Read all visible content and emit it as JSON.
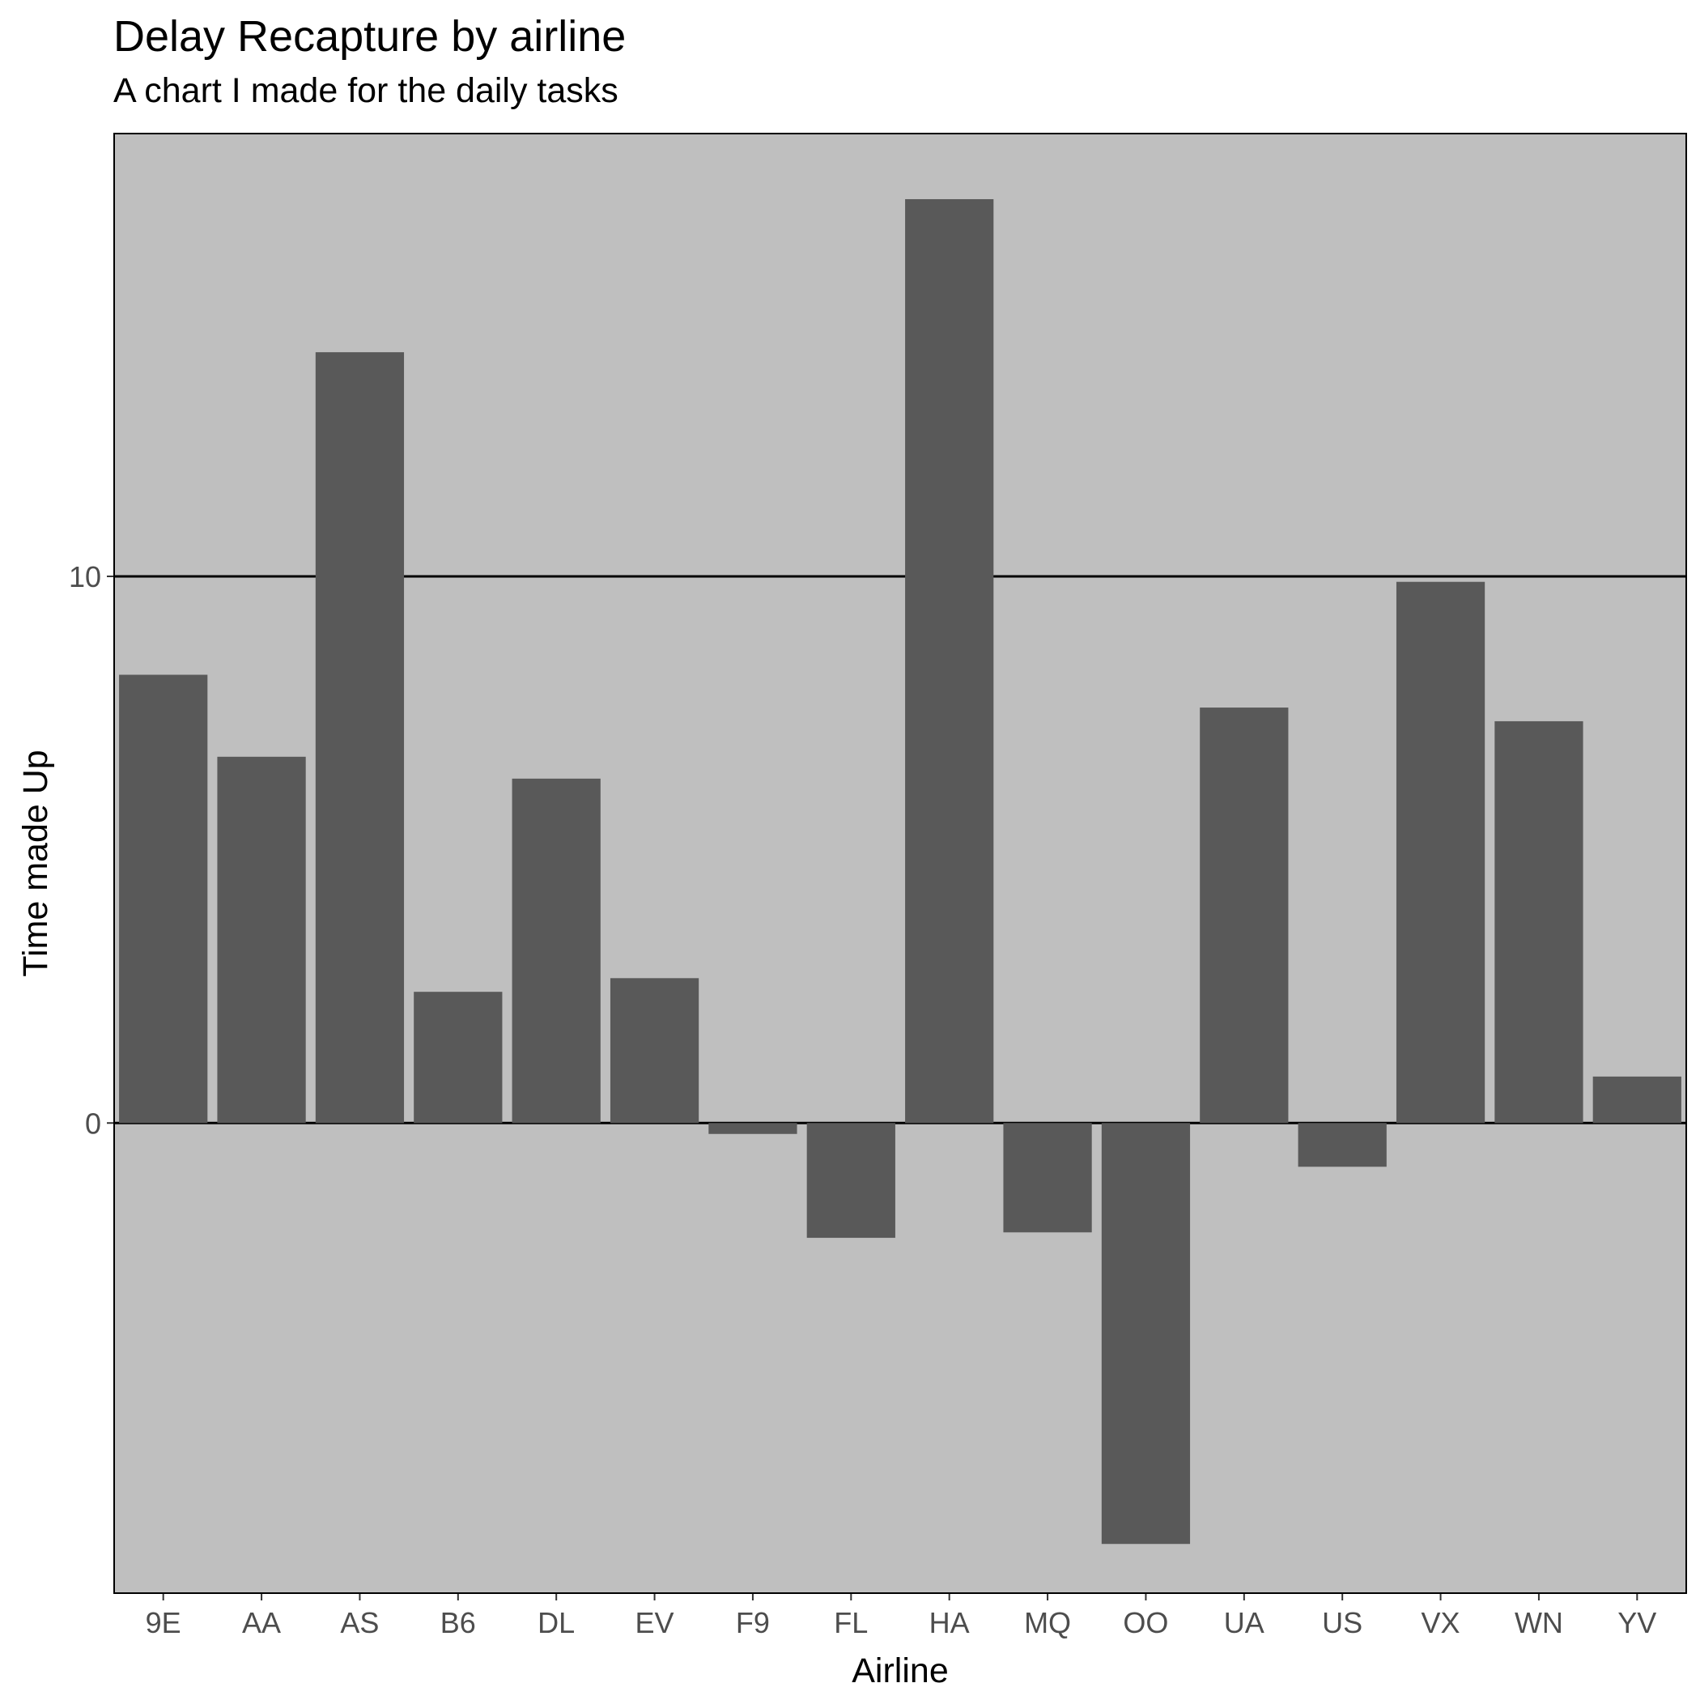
{
  "chart_data": {
    "type": "bar",
    "title": "Delay Recapture by airline",
    "subtitle": "A chart I made for the daily tasks",
    "xlabel": "Airline",
    "ylabel": "Time made Up",
    "categories": [
      "9E",
      "AA",
      "AS",
      "B6",
      "DL",
      "EV",
      "F9",
      "FL",
      "HA",
      "MQ",
      "OO",
      "UA",
      "US",
      "VX",
      "WN",
      "YV"
    ],
    "values": [
      8.2,
      6.7,
      14.1,
      2.4,
      6.3,
      2.65,
      -0.2,
      -2.1,
      16.9,
      -2.0,
      -7.7,
      7.6,
      -0.8,
      9.9,
      7.35,
      0.85
    ],
    "yticks": [
      0,
      10
    ],
    "ylim": [
      -8.6,
      18.1
    ],
    "grid": "major y only",
    "legend": "none",
    "colors": {
      "bar": "#595959",
      "panel": "#bfbfbf",
      "gridline": "#000000"
    }
  }
}
